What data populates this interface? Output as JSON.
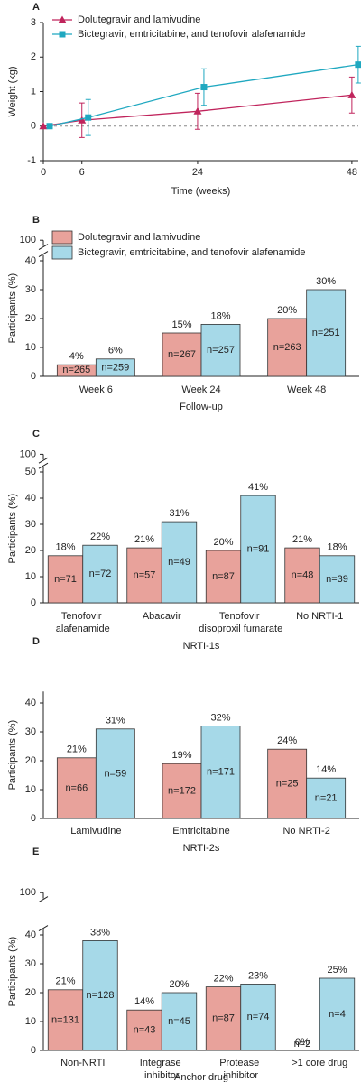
{
  "chart_data": [
    {
      "type": "line",
      "title": "A",
      "xlabel": "Time (weeks)",
      "ylabel": "Weight (kg)",
      "x": [
        0,
        6,
        24,
        48
      ],
      "series": [
        {
          "name": "Dolutegravir and lamivudine",
          "color": "#c0245c",
          "marker": "triangle",
          "values": [
            0,
            0.17,
            0.43,
            0.9
          ],
          "errors": [
            null,
            0.5,
            0.52,
            0.52
          ]
        },
        {
          "name": "Bictegravir, emtricitabine, and tenofovir alafenamide",
          "color": "#1fa8c0",
          "marker": "square",
          "values": [
            0,
            0.25,
            1.13,
            1.78
          ],
          "errors": [
            null,
            0.52,
            0.53,
            0.53
          ]
        }
      ],
      "xlim": [
        0,
        49
      ],
      "xticks": [
        0,
        6,
        24,
        48
      ],
      "ylim": [
        -1,
        3
      ],
      "yticks": [
        -1,
        0,
        1,
        2,
        3
      ],
      "zero_line": "dashed",
      "legend": "top-left"
    },
    {
      "type": "bar",
      "title": "B",
      "xlabel": "Follow-up",
      "ylabel": "Participants (%)",
      "categories": [
        "Week 6",
        "Week 24",
        "Week 48"
      ],
      "series": [
        {
          "name": "Dolutegravir and lamivudine",
          "color": "#e8a29b",
          "values": [
            4,
            15,
            20
          ],
          "value_labels": [
            "4%",
            "15%",
            "20%"
          ],
          "n_labels": [
            "n=265",
            "n=267",
            "n=263"
          ]
        },
        {
          "name": "Bictegravir, emtricitabine, and tenofovir alafenamide",
          "color": "#a6d9e8",
          "values": [
            6,
            18,
            30
          ],
          "value_labels": [
            "6%",
            "18%",
            "30%"
          ],
          "n_labels": [
            "n=259",
            "n=257",
            "n=251"
          ]
        }
      ],
      "ylim": [
        0,
        100
      ],
      "yticks": [
        0,
        10,
        20,
        30,
        40,
        100
      ],
      "axis_break": [
        42,
        98
      ],
      "legend": "top-left"
    },
    {
      "type": "bar",
      "title": "C",
      "xlabel": "NRTI-1s",
      "ylabel": "Participants (%)",
      "categories": [
        "Tenofovir alafenamide",
        "Abacavir",
        "Tenofovir disoproxil fumarate",
        "No NRTI-1"
      ],
      "series": [
        {
          "color": "#e8a29b",
          "values": [
            18,
            21,
            20,
            21
          ],
          "value_labels": [
            "18%",
            "21%",
            "20%",
            "21%"
          ],
          "n_labels": [
            "n=71",
            "n=57",
            "n=87",
            "n=48"
          ]
        },
        {
          "color": "#a6d9e8",
          "values": [
            22,
            31,
            41,
            18
          ],
          "value_labels": [
            "22%",
            "31%",
            "41%",
            "18%"
          ],
          "n_labels": [
            "n=72",
            "n=49",
            "n=91",
            "n=39"
          ]
        }
      ],
      "ylim": [
        0,
        100
      ],
      "yticks": [
        0,
        10,
        20,
        30,
        40,
        50,
        100
      ],
      "axis_break": [
        52,
        98
      ]
    },
    {
      "type": "bar",
      "title": "D",
      "xlabel": "NRTI-2s",
      "ylabel": "Participants (%)",
      "categories": [
        "Lamivudine",
        "Emtricitabine",
        "No NRTI-2"
      ],
      "series": [
        {
          "color": "#e8a29b",
          "values": [
            21,
            19,
            24
          ],
          "value_labels": [
            "21%",
            "19%",
            "24%"
          ],
          "n_labels": [
            "n=66",
            "n=172",
            "n=25"
          ]
        },
        {
          "color": "#a6d9e8",
          "values": [
            31,
            32,
            14
          ],
          "value_labels": [
            "31%",
            "32%",
            "14%"
          ],
          "n_labels": [
            "n=59",
            "n=171",
            "n=21"
          ]
        }
      ],
      "ylim": [
        0,
        44
      ],
      "yticks": [
        0,
        10,
        20,
        30,
        40
      ]
    },
    {
      "type": "bar",
      "title": "E",
      "xlabel": "Anchor drug",
      "ylabel": "Participants (%)",
      "categories": [
        "Non-NRTI",
        "Integrase inhibitor",
        "Protease inhibitor",
        ">1 core drug"
      ],
      "series": [
        {
          "color": "#e8a29b",
          "values": [
            21,
            14,
            22,
            0
          ],
          "value_labels": [
            "21%",
            "14%",
            "22%",
            "0%"
          ],
          "n_labels": [
            "n=131",
            "n=43",
            "n=87",
            "n=2"
          ]
        },
        {
          "color": "#a6d9e8",
          "values": [
            38,
            20,
            23,
            25
          ],
          "value_labels": [
            "38%",
            "20%",
            "23%",
            "25%"
          ],
          "n_labels": [
            "n=128",
            "n=45",
            "n=74",
            "n=4"
          ]
        }
      ],
      "ylim": [
        0,
        100
      ],
      "yticks": [
        0,
        10,
        20,
        30,
        40,
        100
      ],
      "axis_break": [
        42,
        98
      ]
    }
  ]
}
